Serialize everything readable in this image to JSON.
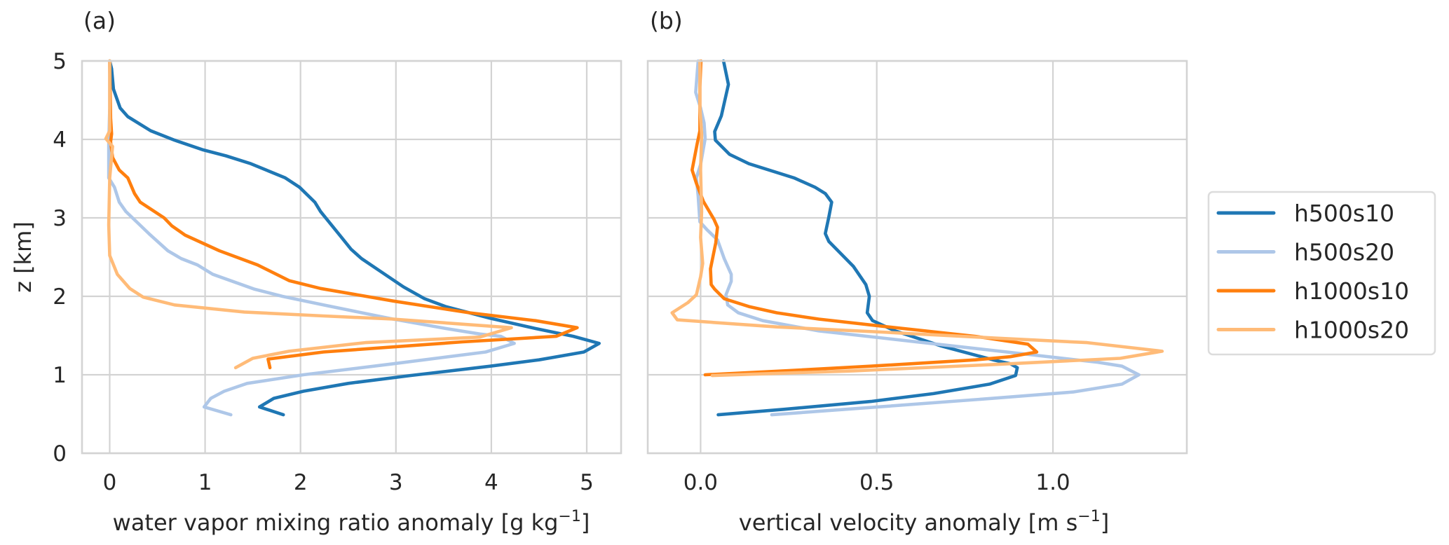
{
  "chart_data": [
    {
      "type": "line",
      "panel_label": "(a)",
      "title": "",
      "xlabel": "water vapor mixing ratio anomaly  [g kg",
      "xlabel_sup": "−1",
      "xlabel_end": "]",
      "ylabel": "z [km]",
      "xlim": [
        -0.29,
        5.36
      ],
      "ylim": [
        0,
        5
      ],
      "xticks": [
        0,
        1,
        2,
        3,
        4,
        5
      ],
      "xtick_labels": [
        "0",
        "1",
        "2",
        "3",
        "4",
        "5"
      ],
      "yticks": [
        0,
        1,
        2,
        3,
        4,
        5
      ],
      "ytick_labels": [
        "0",
        "1",
        "2",
        "3",
        "4",
        "5"
      ],
      "grid": true,
      "series": [
        {
          "name": "h500s10",
          "points": [
            [
              0.0,
              5.0
            ],
            [
              0.02,
              4.9
            ],
            [
              0.04,
              4.64
            ],
            [
              0.11,
              4.4
            ],
            [
              0.19,
              4.29
            ],
            [
              0.43,
              4.11
            ],
            [
              0.68,
              3.99
            ],
            [
              0.97,
              3.87
            ],
            [
              1.22,
              3.79
            ],
            [
              1.48,
              3.69
            ],
            [
              1.84,
              3.51
            ],
            [
              1.99,
              3.39
            ],
            [
              2.15,
              3.2
            ],
            [
              2.21,
              3.08
            ],
            [
              2.41,
              2.78
            ],
            [
              2.53,
              2.6
            ],
            [
              2.64,
              2.48
            ],
            [
              2.86,
              2.3
            ],
            [
              3.08,
              2.12
            ],
            [
              3.3,
              1.97
            ],
            [
              3.52,
              1.87
            ],
            [
              3.99,
              1.72
            ],
            [
              4.46,
              1.59
            ],
            [
              4.86,
              1.49
            ],
            [
              5.13,
              1.4
            ],
            [
              4.97,
              1.29
            ],
            [
              4.5,
              1.19
            ],
            [
              3.99,
              1.11
            ],
            [
              3.15,
              0.99
            ],
            [
              2.5,
              0.89
            ],
            [
              2.03,
              0.79
            ],
            [
              1.72,
              0.7
            ],
            [
              1.57,
              0.59
            ],
            [
              1.82,
              0.49
            ]
          ]
        },
        {
          "name": "h500s20",
          "points": [
            [
              0.0,
              5.0
            ],
            [
              0.0,
              4.4
            ],
            [
              -0.01,
              3.94
            ],
            [
              -0.01,
              3.51
            ],
            [
              0.05,
              3.39
            ],
            [
              0.1,
              3.2
            ],
            [
              0.17,
              3.08
            ],
            [
              0.41,
              2.8
            ],
            [
              0.61,
              2.58
            ],
            [
              0.75,
              2.48
            ],
            [
              0.92,
              2.4
            ],
            [
              1.08,
              2.28
            ],
            [
              1.52,
              2.09
            ],
            [
              1.81,
              2.0
            ],
            [
              2.24,
              1.89
            ],
            [
              2.97,
              1.71
            ],
            [
              3.52,
              1.59
            ],
            [
              3.88,
              1.52
            ],
            [
              4.1,
              1.49
            ],
            [
              4.24,
              1.4
            ],
            [
              3.94,
              1.29
            ],
            [
              2.97,
              1.14
            ],
            [
              2.03,
              1.0
            ],
            [
              1.44,
              0.89
            ],
            [
              1.2,
              0.79
            ],
            [
              1.06,
              0.7
            ],
            [
              0.99,
              0.59
            ],
            [
              1.27,
              0.49
            ]
          ]
        },
        {
          "name": "h1000s10",
          "points": [
            [
              0.0,
              5.0
            ],
            [
              0.01,
              4.27
            ],
            [
              0.02,
              4.07
            ],
            [
              0.01,
              3.97
            ],
            [
              0.03,
              3.77
            ],
            [
              0.1,
              3.61
            ],
            [
              0.19,
              3.51
            ],
            [
              0.26,
              3.31
            ],
            [
              0.32,
              3.2
            ],
            [
              0.57,
              3.0
            ],
            [
              0.65,
              2.9
            ],
            [
              0.79,
              2.78
            ],
            [
              1.15,
              2.58
            ],
            [
              1.55,
              2.4
            ],
            [
              1.88,
              2.2
            ],
            [
              2.21,
              2.1
            ],
            [
              2.97,
              1.94
            ],
            [
              3.77,
              1.79
            ],
            [
              4.46,
              1.69
            ],
            [
              4.9,
              1.6
            ],
            [
              4.68,
              1.49
            ],
            [
              3.7,
              1.42
            ],
            [
              2.24,
              1.29
            ],
            [
              1.66,
              1.2
            ],
            [
              1.68,
              1.09
            ]
          ]
        },
        {
          "name": "h1000s20",
          "points": [
            [
              0.0,
              5.0
            ],
            [
              0.0,
              4.11
            ],
            [
              -0.04,
              4.01
            ],
            [
              0.03,
              3.91
            ],
            [
              0.0,
              3.51
            ],
            [
              -0.01,
              2.91
            ],
            [
              0.0,
              2.52
            ],
            [
              0.08,
              2.28
            ],
            [
              0.21,
              2.1
            ],
            [
              0.35,
              1.99
            ],
            [
              0.68,
              1.89
            ],
            [
              1.41,
              1.8
            ],
            [
              2.24,
              1.75
            ],
            [
              2.97,
              1.71
            ],
            [
              4.21,
              1.6
            ],
            [
              3.88,
              1.48
            ],
            [
              2.68,
              1.41
            ],
            [
              1.88,
              1.3
            ],
            [
              1.5,
              1.21
            ],
            [
              1.32,
              1.09
            ]
          ]
        }
      ]
    },
    {
      "type": "line",
      "panel_label": "(b)",
      "title": "",
      "xlabel": "vertical velocity anomaly [m s",
      "xlabel_sup": "−1",
      "xlabel_end": "]",
      "ylabel": "",
      "xlim": [
        -0.15,
        1.38
      ],
      "ylim": [
        0,
        5
      ],
      "xticks": [
        0.0,
        0.5,
        1.0
      ],
      "xtick_labels": [
        "0.0",
        "0.5",
        "1.0"
      ],
      "yticks": [
        0,
        1,
        2,
        3,
        4,
        5
      ],
      "ytick_labels": [],
      "grid": true,
      "series": [
        {
          "name": "h500s10",
          "points": [
            [
              0.065,
              5.0
            ],
            [
              0.079,
              4.7
            ],
            [
              0.059,
              4.3
            ],
            [
              0.04,
              4.1
            ],
            [
              0.042,
              3.99
            ],
            [
              0.082,
              3.81
            ],
            [
              0.137,
              3.69
            ],
            [
              0.265,
              3.51
            ],
            [
              0.325,
              3.39
            ],
            [
              0.354,
              3.31
            ],
            [
              0.372,
              3.2
            ],
            [
              0.364,
              3.01
            ],
            [
              0.354,
              2.8
            ],
            [
              0.364,
              2.7
            ],
            [
              0.434,
              2.38
            ],
            [
              0.469,
              2.15
            ],
            [
              0.479,
              2.0
            ],
            [
              0.473,
              1.79
            ],
            [
              0.488,
              1.69
            ],
            [
              0.552,
              1.56
            ],
            [
              0.681,
              1.37
            ],
            [
              0.83,
              1.19
            ],
            [
              0.879,
              1.14
            ],
            [
              0.899,
              1.09
            ],
            [
              0.894,
              0.99
            ],
            [
              0.82,
              0.88
            ],
            [
              0.661,
              0.76
            ],
            [
              0.483,
              0.66
            ],
            [
              0.236,
              0.56
            ],
            [
              0.05,
              0.49
            ]
          ]
        },
        {
          "name": "h500s20",
          "points": [
            [
              -0.007,
              5.0
            ],
            [
              -0.014,
              4.6
            ],
            [
              0.0,
              4.4
            ],
            [
              0.01,
              4.21
            ],
            [
              0.013,
              4.01
            ],
            [
              0.0,
              3.68
            ],
            [
              -0.012,
              3.51
            ],
            [
              -0.007,
              3.28
            ],
            [
              -0.002,
              2.95
            ],
            [
              0.018,
              2.85
            ],
            [
              0.048,
              2.72
            ],
            [
              0.067,
              2.48
            ],
            [
              0.087,
              2.28
            ],
            [
              0.087,
              2.19
            ],
            [
              0.072,
              2.02
            ],
            [
              0.077,
              1.89
            ],
            [
              0.107,
              1.79
            ],
            [
              0.176,
              1.69
            ],
            [
              0.335,
              1.56
            ],
            [
              0.533,
              1.46
            ],
            [
              0.731,
              1.36
            ],
            [
              0.929,
              1.26
            ],
            [
              1.127,
              1.16
            ],
            [
              1.196,
              1.11
            ],
            [
              1.244,
              1.0
            ],
            [
              1.196,
              0.88
            ],
            [
              1.057,
              0.78
            ],
            [
              0.83,
              0.7
            ],
            [
              0.533,
              0.6
            ],
            [
              0.202,
              0.49
            ]
          ]
        },
        {
          "name": "h1000s10",
          "points": [
            [
              0.001,
              5.0
            ],
            [
              -0.002,
              4.67
            ],
            [
              -0.002,
              4.11
            ],
            [
              -0.01,
              3.94
            ],
            [
              -0.024,
              3.61
            ],
            [
              -0.012,
              3.44
            ],
            [
              0.008,
              3.21
            ],
            [
              0.038,
              2.98
            ],
            [
              0.048,
              2.88
            ],
            [
              0.043,
              2.68
            ],
            [
              0.028,
              2.35
            ],
            [
              0.03,
              2.15
            ],
            [
              0.04,
              2.09
            ],
            [
              0.067,
              1.97
            ],
            [
              0.137,
              1.87
            ],
            [
              0.216,
              1.79
            ],
            [
              0.335,
              1.71
            ],
            [
              0.533,
              1.61
            ],
            [
              0.78,
              1.49
            ],
            [
              0.929,
              1.39
            ],
            [
              0.954,
              1.29
            ],
            [
              0.879,
              1.23
            ],
            [
              0.78,
              1.19
            ],
            [
              0.483,
              1.11
            ],
            [
              0.236,
              1.05
            ],
            [
              0.013,
              1.0
            ]
          ]
        },
        {
          "name": "h1000s20",
          "points": [
            [
              -0.002,
              5.0
            ],
            [
              -0.002,
              4.4
            ],
            [
              0.003,
              4.07
            ],
            [
              0.0,
              3.61
            ],
            [
              0.003,
              3.08
            ],
            [
              0.0,
              2.75
            ],
            [
              0.006,
              2.42
            ],
            [
              0.0,
              2.25
            ],
            [
              -0.012,
              2.02
            ],
            [
              -0.036,
              1.92
            ],
            [
              -0.081,
              1.79
            ],
            [
              -0.066,
              1.7
            ],
            [
              0.216,
              1.61
            ],
            [
              0.533,
              1.54
            ],
            [
              0.83,
              1.47
            ],
            [
              1.097,
              1.41
            ],
            [
              1.31,
              1.3
            ],
            [
              1.191,
              1.21
            ],
            [
              0.83,
              1.13
            ],
            [
              0.434,
              1.05
            ],
            [
              0.033,
              0.99
            ]
          ]
        }
      ]
    }
  ],
  "legend": {
    "placement": "right",
    "entries": [
      {
        "name": "h500s10",
        "color": "#1f77b4"
      },
      {
        "name": "h500s20",
        "color": "#aec7e8"
      },
      {
        "name": "h1000s10",
        "color": "#ff7f0e"
      },
      {
        "name": "h1000s20",
        "color": "#ffbb78"
      }
    ]
  },
  "colors": {
    "h500s10": "#1f77b4",
    "h500s20": "#aec7e8",
    "h1000s10": "#ff7f0e",
    "h1000s20": "#ffbb78",
    "grid": "#d3d3d3",
    "text": "#262626"
  }
}
